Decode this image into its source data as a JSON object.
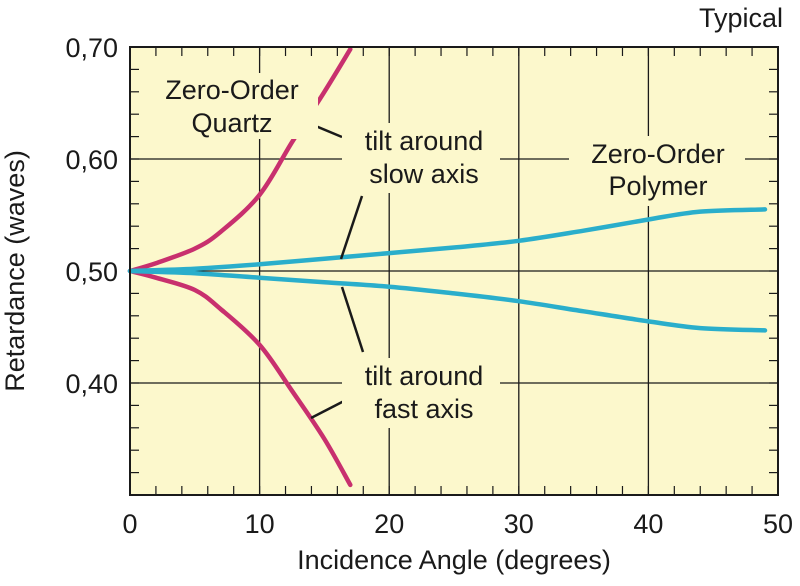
{
  "chart_data": {
    "type": "line",
    "title": "Typical",
    "xlabel": "Incidence Angle (degrees)",
    "ylabel": "Retardance (waves)",
    "xlim": [
      0,
      50
    ],
    "ylim": [
      0.3,
      0.7
    ],
    "x_ticks": [
      0,
      10,
      20,
      30,
      40,
      50
    ],
    "x_tick_labels": [
      "0",
      "10",
      "20",
      "30",
      "40",
      "50"
    ],
    "y_ticks": [
      0.4,
      0.5,
      0.6,
      0.7
    ],
    "y_tick_labels": [
      "0,40",
      "0,50",
      "0,60",
      "0,70"
    ],
    "grid": true,
    "colors": {
      "background": "#fcf8cc",
      "quartz": "#c8306e",
      "polymer": "#2aaecb",
      "grid": "#1a1a1a"
    },
    "series": [
      {
        "name": "Zero-Order Quartz, tilt around slow axis",
        "color": "#c8306e",
        "x": [
          0,
          2,
          5,
          7,
          10,
          12.5,
          15,
          17
        ],
        "y": [
          0.5,
          0.507,
          0.52,
          0.535,
          0.568,
          0.615,
          0.66,
          0.698
        ]
      },
      {
        "name": "Zero-Order Quartz, tilt around fast axis",
        "color": "#c8306e",
        "x": [
          0,
          2,
          5,
          7,
          10,
          12.5,
          15,
          17
        ],
        "y": [
          0.5,
          0.494,
          0.483,
          0.466,
          0.434,
          0.393,
          0.35,
          0.309
        ]
      },
      {
        "name": "Zero-Order Polymer, tilt around slow axis",
        "color": "#2aaecb",
        "x": [
          0,
          5,
          10,
          15,
          20,
          25,
          30,
          35,
          40,
          44,
          49
        ],
        "y": [
          0.5,
          0.502,
          0.506,
          0.511,
          0.516,
          0.521,
          0.527,
          0.536,
          0.546,
          0.553,
          0.555
        ]
      },
      {
        "name": "Zero-Order Polymer, tilt around fast axis",
        "color": "#2aaecb",
        "x": [
          0,
          5,
          10,
          15,
          20,
          25,
          30,
          35,
          40,
          44,
          49
        ],
        "y": [
          0.5,
          0.498,
          0.494,
          0.49,
          0.486,
          0.48,
          0.473,
          0.464,
          0.455,
          0.449,
          0.447
        ]
      }
    ],
    "annotations": {
      "quartz": [
        "Zero-Order",
        "Quartz"
      ],
      "polymer": [
        "Zero-Order",
        "Polymer"
      ],
      "slow_axis": [
        "tilt around",
        "slow axis"
      ],
      "fast_axis": [
        "tilt around",
        "fast axis"
      ]
    }
  }
}
